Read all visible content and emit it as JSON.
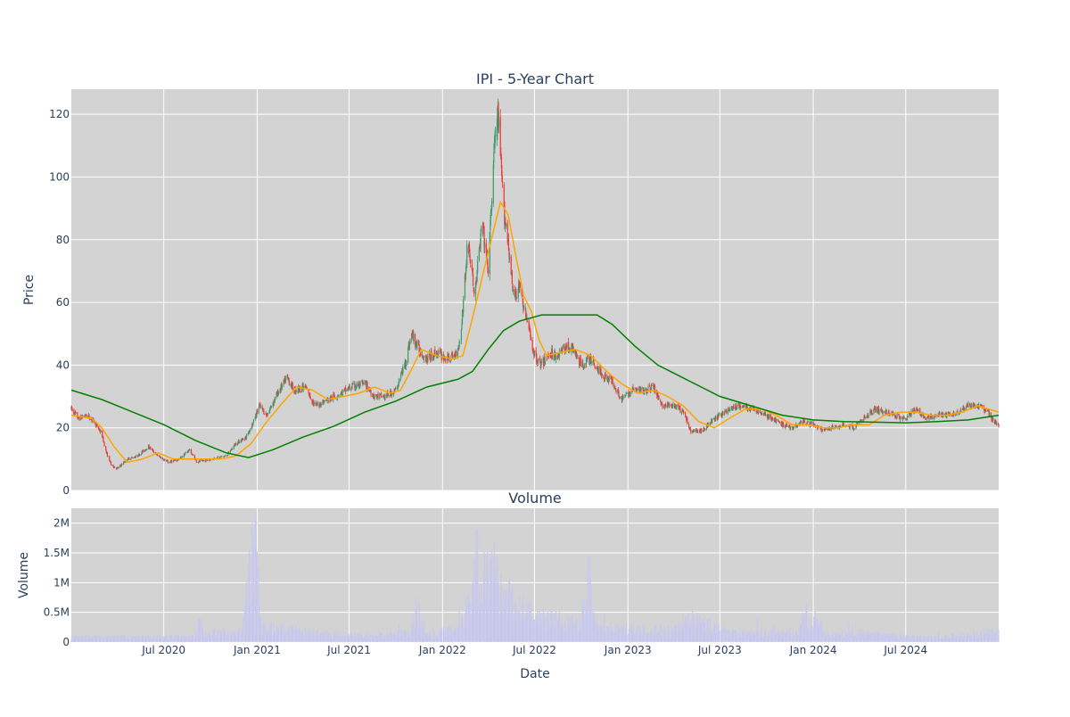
{
  "chart_data": [
    {
      "type": "candlestick",
      "title": "IPI - 5-Year Chart",
      "ylabel": "Price",
      "ylim": [
        0,
        128
      ],
      "yticks": [
        0,
        20,
        40,
        60,
        80,
        100,
        120
      ],
      "xlim": [
        "2020-01-01",
        "2024-12-31"
      ],
      "grid": true,
      "price_points": [
        [
          "2020-01-01",
          26
        ],
        [
          "2020-01-15",
          23
        ],
        [
          "2020-02-01",
          24
        ],
        [
          "2020-02-15",
          22
        ],
        [
          "2020-03-01",
          18
        ],
        [
          "2020-03-10",
          12
        ],
        [
          "2020-03-20",
          8
        ],
        [
          "2020-04-01",
          7
        ],
        [
          "2020-04-20",
          10
        ],
        [
          "2020-05-10",
          11
        ],
        [
          "2020-06-01",
          14
        ],
        [
          "2020-06-20",
          11
        ],
        [
          "2020-07-10",
          9
        ],
        [
          "2020-08-01",
          10
        ],
        [
          "2020-08-20",
          13
        ],
        [
          "2020-09-05",
          9
        ],
        [
          "2020-10-01",
          10
        ],
        [
          "2020-11-01",
          11
        ],
        [
          "2020-11-20",
          15
        ],
        [
          "2020-12-10",
          17
        ],
        [
          "2020-12-25",
          22
        ],
        [
          "2021-01-05",
          27
        ],
        [
          "2021-01-20",
          24
        ],
        [
          "2021-02-10",
          31
        ],
        [
          "2021-03-01",
          36
        ],
        [
          "2021-03-15",
          32
        ],
        [
          "2021-04-05",
          33
        ],
        [
          "2021-04-25",
          27
        ],
        [
          "2021-05-20",
          29
        ],
        [
          "2021-06-15",
          31
        ],
        [
          "2021-07-05",
          33
        ],
        [
          "2021-08-01",
          34
        ],
        [
          "2021-08-20",
          30
        ],
        [
          "2021-09-10",
          30
        ],
        [
          "2021-10-01",
          32
        ],
        [
          "2021-10-20",
          41
        ],
        [
          "2021-11-01",
          50
        ],
        [
          "2021-11-15",
          45
        ],
        [
          "2021-12-01",
          42
        ],
        [
          "2021-12-20",
          44
        ],
        [
          "2022-01-10",
          42
        ],
        [
          "2022-01-25",
          43
        ],
        [
          "2022-02-05",
          48
        ],
        [
          "2022-02-20",
          80
        ],
        [
          "2022-03-05",
          62
        ],
        [
          "2022-03-20",
          85
        ],
        [
          "2022-04-01",
          70
        ],
        [
          "2022-04-12",
          108
        ],
        [
          "2022-04-20",
          120
        ],
        [
          "2022-05-01",
          90
        ],
        [
          "2022-05-10",
          80
        ],
        [
          "2022-05-20",
          62
        ],
        [
          "2022-06-01",
          65
        ],
        [
          "2022-06-15",
          55
        ],
        [
          "2022-07-01",
          43
        ],
        [
          "2022-07-15",
          40
        ],
        [
          "2022-08-01",
          44
        ],
        [
          "2022-08-15",
          43
        ],
        [
          "2022-09-01",
          46
        ],
        [
          "2022-09-15",
          45
        ],
        [
          "2022-10-01",
          40
        ],
        [
          "2022-10-20",
          42
        ],
        [
          "2022-11-10",
          37
        ],
        [
          "2022-12-01",
          35
        ],
        [
          "2022-12-20",
          29
        ],
        [
          "2023-01-10",
          32
        ],
        [
          "2023-02-01",
          32
        ],
        [
          "2023-02-20",
          33
        ],
        [
          "2023-03-10",
          27
        ],
        [
          "2023-04-01",
          27
        ],
        [
          "2023-04-20",
          25
        ],
        [
          "2023-05-05",
          19
        ],
        [
          "2023-05-25",
          19
        ],
        [
          "2023-06-15",
          22
        ],
        [
          "2023-07-01",
          24
        ],
        [
          "2023-07-20",
          26
        ],
        [
          "2023-08-10",
          27
        ],
        [
          "2023-09-01",
          26
        ],
        [
          "2023-09-20",
          25
        ],
        [
          "2023-10-10",
          23
        ],
        [
          "2023-11-01",
          21
        ],
        [
          "2023-11-20",
          20
        ],
        [
          "2023-12-10",
          22
        ],
        [
          "2024-01-01",
          21
        ],
        [
          "2024-01-20",
          19
        ],
        [
          "2024-02-10",
          20
        ],
        [
          "2024-03-01",
          21
        ],
        [
          "2024-03-20",
          20
        ],
        [
          "2024-04-10",
          23
        ],
        [
          "2024-05-01",
          26
        ],
        [
          "2024-05-20",
          25
        ],
        [
          "2024-06-10",
          24
        ],
        [
          "2024-07-01",
          23
        ],
        [
          "2024-07-20",
          26
        ],
        [
          "2024-08-10",
          23
        ],
        [
          "2024-09-01",
          24
        ],
        [
          "2024-09-20",
          24
        ],
        [
          "2024-10-10",
          25
        ],
        [
          "2024-11-01",
          27
        ],
        [
          "2024-11-20",
          27
        ],
        [
          "2024-12-10",
          25
        ],
        [
          "2024-12-20",
          22
        ],
        [
          "2024-12-31",
          21
        ]
      ],
      "series": [
        {
          "color": "#ffa500",
          "values": [
            [
              "2020-01-01",
              24
            ],
            [
              "2020-02-10",
              23
            ],
            [
              "2020-03-01",
              20
            ],
            [
              "2020-03-25",
              14
            ],
            [
              "2020-04-20",
              9
            ],
            [
              "2020-05-20",
              10
            ],
            [
              "2020-06-20",
              12
            ],
            [
              "2020-07-20",
              10
            ],
            [
              "2020-08-20",
              10
            ],
            [
              "2020-09-20",
              10
            ],
            [
              "2020-10-20",
              10
            ],
            [
              "2020-11-20",
              11
            ],
            [
              "2020-12-20",
              15
            ],
            [
              "2021-01-20",
              22
            ],
            [
              "2021-02-20",
              28
            ],
            [
              "2021-03-20",
              33
            ],
            [
              "2021-04-20",
              32
            ],
            [
              "2021-05-20",
              29
            ],
            [
              "2021-06-20",
              30
            ],
            [
              "2021-07-20",
              31
            ],
            [
              "2021-08-20",
              33
            ],
            [
              "2021-09-20",
              31
            ],
            [
              "2021-10-10",
              32
            ],
            [
              "2021-10-30",
              38
            ],
            [
              "2021-11-20",
              45
            ],
            [
              "2021-12-20",
              43
            ],
            [
              "2022-01-20",
              42
            ],
            [
              "2022-02-10",
              43
            ],
            [
              "2022-03-01",
              55
            ],
            [
              "2022-03-20",
              68
            ],
            [
              "2022-04-10",
              82
            ],
            [
              "2022-04-25",
              92
            ],
            [
              "2022-05-10",
              88
            ],
            [
              "2022-05-25",
              75
            ],
            [
              "2022-06-10",
              62
            ],
            [
              "2022-06-25",
              57
            ],
            [
              "2022-07-10",
              48
            ],
            [
              "2022-07-25",
              43
            ],
            [
              "2022-08-20",
              44
            ],
            [
              "2022-09-20",
              45
            ],
            [
              "2022-10-20",
              43
            ],
            [
              "2022-11-20",
              38
            ],
            [
              "2022-12-20",
              34
            ],
            [
              "2023-01-20",
              31
            ],
            [
              "2023-02-20",
              32
            ],
            [
              "2023-03-20",
              30
            ],
            [
              "2023-04-20",
              27
            ],
            [
              "2023-05-20",
              22
            ],
            [
              "2023-06-20",
              20
            ],
            [
              "2023-07-20",
              23
            ],
            [
              "2023-08-20",
              26
            ],
            [
              "2023-09-20",
              26
            ],
            [
              "2023-10-20",
              24
            ],
            [
              "2023-11-20",
              21
            ],
            [
              "2023-12-20",
              21
            ],
            [
              "2024-01-20",
              20
            ],
            [
              "2024-02-20",
              20
            ],
            [
              "2024-03-20",
              21
            ],
            [
              "2024-04-20",
              21
            ],
            [
              "2024-05-20",
              24
            ],
            [
              "2024-06-20",
              25
            ],
            [
              "2024-07-20",
              25
            ],
            [
              "2024-08-20",
              24
            ],
            [
              "2024-09-20",
              24
            ],
            [
              "2024-10-20",
              25
            ],
            [
              "2024-11-20",
              27
            ],
            [
              "2024-12-31",
              25
            ]
          ]
        },
        {
          "color": "#008000",
          "values": [
            [
              "2020-01-01",
              32
            ],
            [
              "2020-03-01",
              29
            ],
            [
              "2020-05-01",
              25
            ],
            [
              "2020-07-01",
              21
            ],
            [
              "2020-09-01",
              16
            ],
            [
              "2020-11-01",
              12
            ],
            [
              "2020-12-15",
              10.5
            ],
            [
              "2021-02-01",
              13
            ],
            [
              "2021-04-01",
              17
            ],
            [
              "2021-06-01",
              20.5
            ],
            [
              "2021-08-01",
              25
            ],
            [
              "2021-10-01",
              28.5
            ],
            [
              "2021-12-01",
              33
            ],
            [
              "2022-02-01",
              35.5
            ],
            [
              "2022-03-01",
              38
            ],
            [
              "2022-04-01",
              45
            ],
            [
              "2022-05-01",
              51
            ],
            [
              "2022-06-01",
              54
            ],
            [
              "2022-07-15",
              56
            ],
            [
              "2022-09-01",
              56
            ],
            [
              "2022-11-01",
              56
            ],
            [
              "2022-12-01",
              53
            ],
            [
              "2023-01-15",
              46
            ],
            [
              "2023-03-01",
              40
            ],
            [
              "2023-05-01",
              35
            ],
            [
              "2023-07-01",
              30
            ],
            [
              "2023-09-01",
              27
            ],
            [
              "2023-11-01",
              24
            ],
            [
              "2024-01-01",
              22.5
            ],
            [
              "2024-03-01",
              22
            ],
            [
              "2024-05-01",
              21.8
            ],
            [
              "2024-07-01",
              21.6
            ],
            [
              "2024-09-01",
              22
            ],
            [
              "2024-11-01",
              22.5
            ],
            [
              "2024-12-31",
              24
            ]
          ]
        }
      ]
    },
    {
      "type": "bar",
      "title": "Volume",
      "xlabel": "Date",
      "ylabel": "Volume",
      "ylim": [
        0,
        2250000
      ],
      "yticks": [
        0,
        500000,
        1000000,
        1500000,
        2000000
      ],
      "ytick_labels": [
        "0",
        "0.5M",
        "1M",
        "1.5M",
        "2M"
      ],
      "xticks": [
        "2020-07-01",
        "2021-01-01",
        "2021-07-01",
        "2022-01-01",
        "2022-07-01",
        "2023-01-01",
        "2023-07-01",
        "2024-01-01",
        "2024-07-01"
      ],
      "xtick_labels": [
        "Jul 2020",
        "Jan 2021",
        "Jul 2021",
        "Jan 2022",
        "Jul 2022",
        "Jan 2023",
        "Jul 2023",
        "Jan 2024",
        "Jul 2024"
      ],
      "color": "#c8c8f0",
      "grid": true,
      "volume_profile": [
        [
          "2020-01-01",
          100000
        ],
        [
          "2020-09-01",
          110000
        ],
        [
          "2020-09-10",
          500000
        ],
        [
          "2020-09-20",
          180000
        ],
        [
          "2020-12-01",
          200000
        ],
        [
          "2020-12-28",
          2150000
        ],
        [
          "2021-01-10",
          300000
        ],
        [
          "2021-03-01",
          250000
        ],
        [
          "2021-05-01",
          180000
        ],
        [
          "2021-08-01",
          120000
        ],
        [
          "2021-11-01",
          200000
        ],
        [
          "2021-11-10",
          700000
        ],
        [
          "2021-12-01",
          150000
        ],
        [
          "2022-02-01",
          300000
        ],
        [
          "2022-03-01",
          1000000
        ],
        [
          "2022-03-06",
          1850000
        ],
        [
          "2022-04-01",
          1200000
        ],
        [
          "2022-04-12",
          1400000
        ],
        [
          "2022-05-10",
          900000
        ],
        [
          "2022-06-01",
          700000
        ],
        [
          "2022-07-01",
          500000
        ],
        [
          "2022-08-01",
          450000
        ],
        [
          "2022-10-01",
          350000
        ],
        [
          "2022-10-15",
          1450000
        ],
        [
          "2022-11-01",
          300000
        ],
        [
          "2023-01-01",
          250000
        ],
        [
          "2023-04-01",
          220000
        ],
        [
          "2023-05-01",
          500000
        ],
        [
          "2023-07-01",
          250000
        ],
        [
          "2023-09-01",
          180000
        ],
        [
          "2023-12-01",
          200000
        ],
        [
          "2023-12-20",
          580000
        ],
        [
          "2024-02-01",
          150000
        ],
        [
          "2024-04-01",
          180000
        ],
        [
          "2024-06-01",
          120000
        ],
        [
          "2024-09-01",
          90000
        ],
        [
          "2024-11-01",
          150000
        ],
        [
          "2024-12-31",
          200000
        ]
      ]
    }
  ]
}
